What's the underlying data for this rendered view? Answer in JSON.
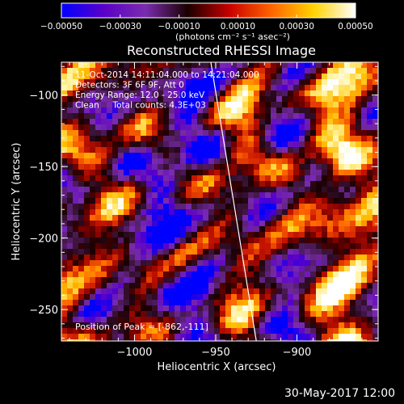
{
  "chart_data": {
    "type": "heatmap",
    "title": "Reconstructed RHESSI Image",
    "xlabel": "Heliocentric X (arcsec)",
    "ylabel": "Heliocentric Y (arcsec)",
    "xlim": [
      -1045,
      -850
    ],
    "ylim": [
      -272,
      -77
    ],
    "x_ticks": [
      -1000,
      -950,
      -900
    ],
    "y_ticks": [
      -100,
      -150,
      -200,
      -250
    ],
    "x_tick_labels": [
      "−1000",
      "−950",
      "−900"
    ],
    "y_tick_labels": [
      "−100",
      "−150",
      "−200",
      "−250"
    ],
    "colorbar": {
      "min": -0.0005,
      "max": 0.0005,
      "ticks": [
        -0.0005,
        -0.0003,
        -0.0001,
        0.0001,
        0.0003,
        0.0005
      ],
      "tick_labels": [
        "−0.00050",
        "−0.00030",
        "−0.00010",
        "0.00010",
        "0.00030",
        "0.00050"
      ],
      "unit_label": "(photons cm⁻² s⁻¹ asec⁻²)",
      "colors": [
        "#0000ff",
        "#5a00c8",
        "#7a2cae",
        "#1a0000",
        "#c80000",
        "#ff6400",
        "#ffd200",
        "#ffffff"
      ]
    },
    "annotations": [
      "11-Oct-2014 14:11:04.000 to 14:21:04.000",
      "Detectors: 3F 6F 9F, Att 0",
      "Energy Range: 12.0 - 25.0 keV",
      "Clean     Total counts: 4.3E+03"
    ],
    "peak_label": "Position of Peak = [-862,-111]",
    "limb": [
      {
        "x": -953,
        "y": -77
      },
      {
        "x": -925,
        "y": -272
      }
    ]
  },
  "footer": {
    "date": "30-May-2017 12:00"
  }
}
